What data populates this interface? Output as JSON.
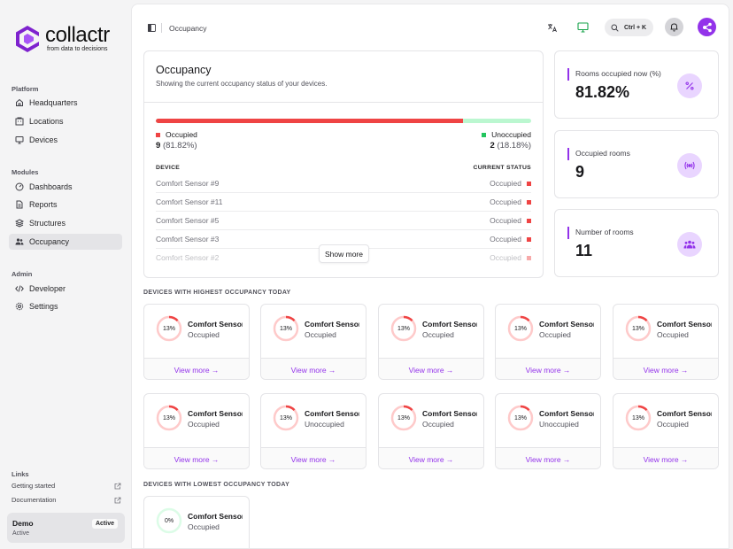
{
  "brand": {
    "name": "collactr",
    "tagline": "from data to decisions",
    "accent": "#9333ea"
  },
  "sidebar": {
    "platform_label": "Platform",
    "platform": [
      {
        "label": "Headquarters",
        "icon": "home-icon"
      },
      {
        "label": "Locations",
        "icon": "building-icon"
      },
      {
        "label": "Devices",
        "icon": "monitor-icon"
      }
    ],
    "modules_label": "Modules",
    "modules": [
      {
        "label": "Dashboards",
        "icon": "gauge-icon"
      },
      {
        "label": "Reports",
        "icon": "file-icon"
      },
      {
        "label": "Structures",
        "icon": "structure-icon"
      },
      {
        "label": "Occupancy",
        "icon": "users-icon",
        "active": true
      }
    ],
    "admin_label": "Admin",
    "admin": [
      {
        "label": "Developer",
        "icon": "code-icon"
      },
      {
        "label": "Settings",
        "icon": "gear-icon"
      }
    ],
    "links_label": "Links",
    "links": [
      {
        "label": "Getting started",
        "icon": "external-link-icon"
      },
      {
        "label": "Documentation",
        "icon": "external-link-icon"
      }
    ],
    "workspace": {
      "name": "Demo",
      "status": "Active",
      "badge": "Active"
    }
  },
  "topbar": {
    "title": "Occupancy",
    "search_shortcut": "Ctrl + K"
  },
  "occupancy": {
    "title": "Occupancy",
    "subtitle": "Showing the current occupancy status of your devices.",
    "occupied_fraction": 0.8182,
    "occupied": {
      "label": "Occupied",
      "count": "9",
      "pct": "(81.82%)",
      "color": "#ef4444"
    },
    "unoccupied": {
      "label": "Unoccupied",
      "count": "2",
      "pct": "(18.18%)",
      "color": "#22c55e"
    },
    "col_device": "DEVICE",
    "col_status": "CURRENT STATUS",
    "rows": [
      {
        "device": "Comfort Sensor #9",
        "status": "Occupied"
      },
      {
        "device": "Comfort Sensor #11",
        "status": "Occupied"
      },
      {
        "device": "Comfort Sensor #5",
        "status": "Occupied"
      },
      {
        "device": "Comfort Sensor #3",
        "status": "Occupied"
      },
      {
        "device": "Comfort Sensor #2",
        "status": "Occupied"
      }
    ],
    "show_more": "Show more"
  },
  "stats": [
    {
      "label": "Rooms occupied now (%)",
      "value": "81.82%",
      "icon": "percent-icon"
    },
    {
      "label": "Occupied rooms",
      "value": "9",
      "icon": "broadcast-icon"
    },
    {
      "label": "Number of rooms",
      "value": "11",
      "icon": "users-icon"
    }
  ],
  "highest": {
    "label": "DEVICES WITH HIGHEST OCCUPANCY TODAY",
    "cards": [
      {
        "pct": "13%",
        "fraction": 0.13,
        "name": "Comfort Sensor",
        "status": "Occupied"
      },
      {
        "pct": "13%",
        "fraction": 0.13,
        "name": "Comfort Sensor",
        "status": "Occupied"
      },
      {
        "pct": "13%",
        "fraction": 0.13,
        "name": "Comfort Sensor",
        "status": "Occupied"
      },
      {
        "pct": "13%",
        "fraction": 0.13,
        "name": "Comfort Sensor",
        "status": "Occupied"
      },
      {
        "pct": "13%",
        "fraction": 0.13,
        "name": "Comfort Sensor",
        "status": "Occupied"
      },
      {
        "pct": "13%",
        "fraction": 0.13,
        "name": "Comfort Sensor",
        "status": "Occupied"
      },
      {
        "pct": "13%",
        "fraction": 0.13,
        "name": "Comfort Sensor",
        "status": "Unoccupied"
      },
      {
        "pct": "13%",
        "fraction": 0.13,
        "name": "Comfort Sensor",
        "status": "Occupied"
      },
      {
        "pct": "13%",
        "fraction": 0.13,
        "name": "Comfort Sensor",
        "status": "Unoccupied"
      },
      {
        "pct": "13%",
        "fraction": 0.13,
        "name": "Comfort Sensor",
        "status": "Occupied"
      }
    ]
  },
  "lowest": {
    "label": "DEVICES WITH LOWEST OCCUPANCY TODAY",
    "cards": [
      {
        "pct": "0%",
        "fraction": 0,
        "name": "Comfort Sensor",
        "status": "Occupied"
      }
    ]
  },
  "view_more": "View more →"
}
